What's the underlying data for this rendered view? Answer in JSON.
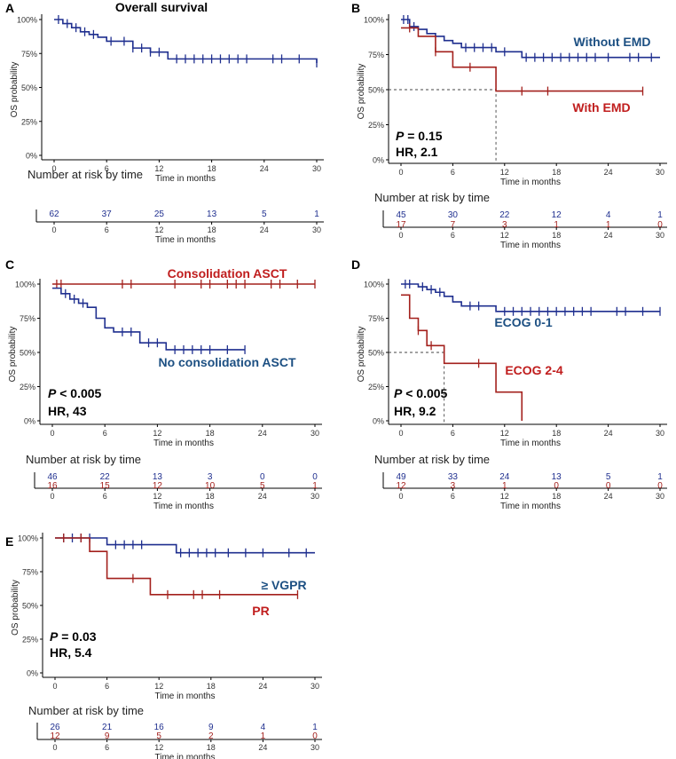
{
  "figure": {
    "axis_label_y": "OS probability",
    "axis_label_x": "Time in months",
    "risk_header": "Number at risk by time"
  },
  "colors": {
    "blue": "#1f2f8f",
    "red": "#a3201c",
    "blue_label": "#1c4f82",
    "red_label": "#c01d1d"
  },
  "chart_data": [
    {
      "panel": "A",
      "title": "Overall survival",
      "type": "line",
      "xlabel": "Time in months",
      "ylabel": "OS probability",
      "xlim": [
        0,
        30
      ],
      "ylim": [
        0,
        1
      ],
      "xticks": [
        0,
        6,
        12,
        18,
        24,
        30
      ],
      "yticks": [
        "0%",
        "25%",
        "50%",
        "75%",
        "100%"
      ],
      "series": [
        {
          "name": "Overall",
          "color": "blue",
          "x": [
            0,
            1,
            2,
            3,
            4,
            5,
            6,
            9,
            11,
            13,
            30
          ],
          "y": [
            1.0,
            0.97,
            0.94,
            0.91,
            0.89,
            0.87,
            0.84,
            0.79,
            0.76,
            0.71,
            0.68
          ],
          "censor_x": [
            0.5,
            1.5,
            2.5,
            3.5,
            4.5,
            6.5,
            8,
            9,
            10,
            11,
            12,
            14,
            15,
            16,
            17,
            18,
            19,
            20,
            21,
            22,
            25,
            26,
            28,
            30
          ]
        }
      ],
      "risk": {
        "times": [
          0,
          6,
          12,
          18,
          24,
          30
        ],
        "rows": [
          {
            "color": "blue",
            "values": [
              62,
              37,
              25,
              13,
              5,
              1
            ]
          }
        ]
      }
    },
    {
      "panel": "B",
      "type": "line",
      "xlabel": "Time in months",
      "ylabel": "OS probability",
      "xlim": [
        0,
        30
      ],
      "ylim": [
        0,
        1
      ],
      "xticks": [
        0,
        6,
        12,
        18,
        24,
        30
      ],
      "yticks": [
        "0%",
        "25%",
        "50%",
        "75%",
        "100%"
      ],
      "series": [
        {
          "name": "Without EMD",
          "color": "blue",
          "x": [
            0,
            1,
            2,
            3,
            4,
            5,
            6,
            7,
            11,
            14,
            30
          ],
          "y": [
            1.0,
            0.95,
            0.93,
            0.9,
            0.88,
            0.85,
            0.83,
            0.8,
            0.77,
            0.73,
            0.73
          ],
          "censor_x": [
            0.3,
            0.8,
            1.5,
            7.5,
            8.5,
            9.5,
            10.5,
            12,
            14.5,
            15.5,
            16.5,
            17.5,
            18.5,
            19.5,
            20.5,
            21.5,
            22.5,
            24,
            26.5,
            27.5,
            29
          ]
        },
        {
          "name": "With EMD",
          "color": "red",
          "x": [
            0,
            2,
            4,
            6,
            11,
            28
          ],
          "y": [
            0.94,
            0.88,
            0.77,
            0.66,
            0.49,
            0.49
          ],
          "censor_x": [
            1,
            4,
            8,
            14,
            17,
            28
          ]
        }
      ],
      "median_lines": [
        {
          "x": 11,
          "y": 0.5
        }
      ],
      "annotations": {
        "p": "P",
        "p_rest": " = 0.15",
        "hr": "HR, 2.1"
      },
      "risk": {
        "times": [
          0,
          6,
          12,
          18,
          24,
          30
        ],
        "rows": [
          {
            "color": "blue",
            "values": [
              45,
              30,
              22,
              12,
              4,
              1
            ]
          },
          {
            "color": "red",
            "values": [
              17,
              7,
              3,
              1,
              1,
              0
            ]
          }
        ]
      }
    },
    {
      "panel": "C",
      "type": "line",
      "xlabel": "Time in months",
      "ylabel": "OS probability",
      "xlim": [
        0,
        30
      ],
      "ylim": [
        0,
        1
      ],
      "xticks": [
        0,
        6,
        12,
        18,
        24,
        30
      ],
      "yticks": [
        "0%",
        "25%",
        "50%",
        "75%",
        "100%"
      ],
      "series": [
        {
          "name": "Consolidation ASCT",
          "color": "red",
          "x": [
            0,
            30
          ],
          "y": [
            1.0,
            1.0
          ],
          "censor_x": [
            0.5,
            1,
            8,
            9,
            14,
            17,
            18,
            20,
            21,
            22,
            25,
            26,
            28,
            30
          ]
        },
        {
          "name": "No consolidation ASCT",
          "color": "blue",
          "x": [
            0,
            1,
            2,
            3,
            4,
            5,
            6,
            7,
            10,
            13,
            22
          ],
          "y": [
            0.97,
            0.93,
            0.89,
            0.86,
            0.83,
            0.75,
            0.68,
            0.65,
            0.57,
            0.52,
            0.52
          ],
          "censor_x": [
            1.5,
            2.5,
            3.5,
            8,
            9,
            11,
            12,
            14,
            15,
            16,
            17,
            18,
            20,
            22
          ]
        }
      ],
      "annotations": {
        "p": "P",
        "p_rest": " < 0.005",
        "hr": "HR, 43"
      },
      "risk": {
        "times": [
          0,
          6,
          12,
          18,
          24,
          30
        ],
        "rows": [
          {
            "color": "blue",
            "values": [
              46,
              22,
              13,
              3,
              0,
              0
            ]
          },
          {
            "color": "red",
            "values": [
              16,
              15,
              12,
              10,
              5,
              1
            ]
          }
        ]
      }
    },
    {
      "panel": "D",
      "type": "line",
      "xlabel": "Time in months",
      "ylabel": "OS probability",
      "xlim": [
        0,
        30
      ],
      "ylim": [
        0,
        1
      ],
      "xticks": [
        0,
        6,
        12,
        18,
        24,
        30
      ],
      "yticks": [
        "0%",
        "25%",
        "50%",
        "75%",
        "100%"
      ],
      "series": [
        {
          "name": "ECOG 0-1",
          "color": "blue",
          "x": [
            0,
            2,
            3,
            4,
            5,
            6,
            7,
            11,
            30
          ],
          "y": [
            1.0,
            0.98,
            0.96,
            0.94,
            0.91,
            0.87,
            0.84,
            0.8,
            0.8
          ],
          "censor_x": [
            0.5,
            1,
            2.5,
            3.5,
            4.5,
            8,
            9,
            12,
            13,
            14,
            15,
            16,
            17,
            18,
            19,
            20,
            21,
            22,
            25,
            26,
            28,
            30
          ]
        },
        {
          "name": "ECOG 2-4",
          "color": "red",
          "x": [
            0,
            1,
            2,
            3,
            5,
            11,
            14
          ],
          "y": [
            0.92,
            0.75,
            0.66,
            0.55,
            0.42,
            0.21,
            0.0
          ],
          "censor_x": [
            2,
            3.5,
            9
          ]
        }
      ],
      "median_lines": [
        {
          "x": 5,
          "y": 0.5
        }
      ],
      "annotations": {
        "p": "P",
        "p_rest": " < 0.005",
        "hr": "HR, 9.2"
      },
      "risk": {
        "times": [
          0,
          6,
          12,
          18,
          24,
          30
        ],
        "rows": [
          {
            "color": "blue",
            "values": [
              49,
              33,
              24,
              13,
              5,
              1
            ]
          },
          {
            "color": "red",
            "values": [
              12,
              3,
              1,
              0,
              0,
              0
            ]
          }
        ]
      }
    },
    {
      "panel": "E",
      "type": "line",
      "xlabel": "Time in months",
      "ylabel": "OS probability",
      "xlim": [
        0,
        30
      ],
      "ylim": [
        0,
        1
      ],
      "xticks": [
        0,
        6,
        12,
        18,
        24,
        30
      ],
      "yticks": [
        "0%",
        "25%",
        "50%",
        "75%",
        "100%"
      ],
      "series": [
        {
          "name": "≥ VGPR",
          "color": "blue",
          "x": [
            0,
            6,
            14,
            30
          ],
          "y": [
            1.0,
            0.95,
            0.89,
            0.89
          ],
          "censor_x": [
            1,
            2,
            3,
            4,
            7,
            8,
            9,
            10,
            14.5,
            15.5,
            16.5,
            17.5,
            18.5,
            20,
            22,
            24,
            27,
            29
          ]
        },
        {
          "name": "PR",
          "color": "red",
          "x": [
            0,
            4,
            6,
            11,
            28
          ],
          "y": [
            1.0,
            0.9,
            0.7,
            0.58,
            0.58
          ],
          "censor_x": [
            1,
            3,
            9,
            13,
            16,
            17,
            19,
            28
          ]
        }
      ],
      "annotations": {
        "p": "P",
        "p_rest": " = 0.03",
        "hr": "HR, 5.4"
      },
      "risk": {
        "times": [
          0,
          6,
          12,
          18,
          24,
          30
        ],
        "rows": [
          {
            "color": "blue",
            "values": [
              26,
              21,
              16,
              9,
              4,
              1
            ]
          },
          {
            "color": "red",
            "values": [
              12,
              9,
              5,
              2,
              1,
              0
            ]
          }
        ]
      }
    }
  ]
}
